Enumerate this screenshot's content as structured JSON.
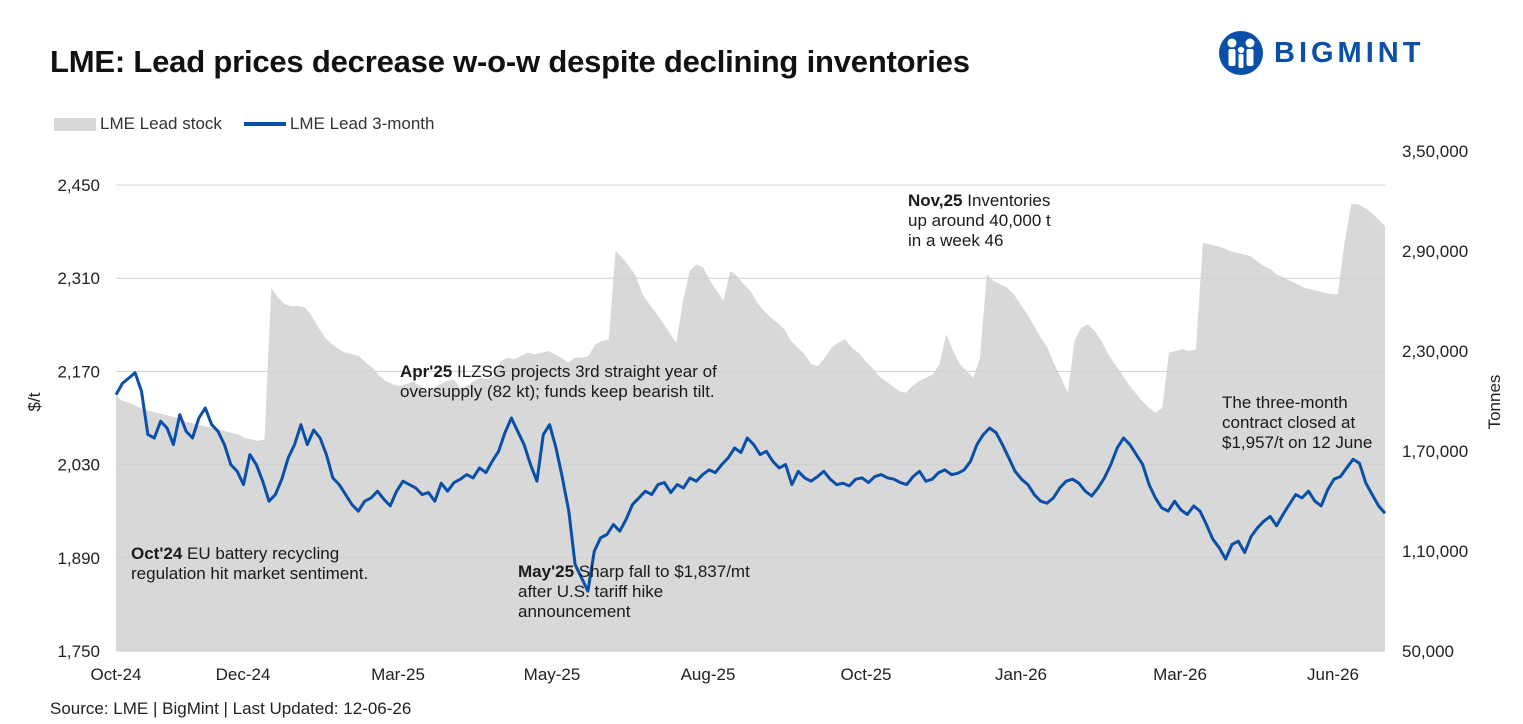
{
  "title": "LME: Lead prices decrease w-o-w despite declining inventories",
  "brand": {
    "name": "BIGMINT",
    "color": "#0a4fa8"
  },
  "source": "Source: LME | BigMint | Last Updated: 12-06-26",
  "legend": {
    "stock": "LME Lead stock",
    "price": "LME Lead 3-month"
  },
  "colors": {
    "price": "#0a4fa8",
    "stock": "#d8d8d8",
    "grid": "#d0d0d0"
  },
  "annotations": {
    "oct24": {
      "bold": "Oct'24",
      "rest": "EU battery recycling regulation hit market sentiment."
    },
    "apr25": {
      "bold": "Apr'25",
      "rest": "ILZSG projects 3rd straight year of oversupply (82 kt); funds keep bearish tilt."
    },
    "may25": {
      "bold": "May'25",
      "rest": "Sharp fall to $1,837/mt after U.S. tariff hike announcement"
    },
    "nov25": {
      "bold": "Nov,25",
      "rest": "Inventories up around 40,000 t in a week 46"
    },
    "jun26": {
      "bold": "",
      "rest": "The three-month contract closed at $1,957/t on 12 June"
    }
  },
  "chart_data": {
    "type": "line",
    "title": "LME: Lead prices decrease w-o-w despite declining inventories",
    "xlabel": "",
    "ylabel": "$/t",
    "y2label": "Tonnes",
    "x_ticks": [
      "Oct-24",
      "Dec-24",
      "Mar-25",
      "May-25",
      "Aug-25",
      "Oct-25",
      "Jan-26",
      "Mar-26",
      "Jun-26"
    ],
    "y_ticks": [
      "1,750",
      "1,890",
      "2,030",
      "2,170",
      "2,310",
      "2,450"
    ],
    "y2_ticks": [
      "50,000",
      "1,10,000",
      "1,70,000",
      "2,30,000",
      "2,90,000",
      "3,50,000"
    ],
    "ylim": [
      1750,
      2450
    ],
    "y2lim": [
      50000,
      350000
    ],
    "grid": "horizontal",
    "legend_position": "top-left",
    "series": [
      {
        "name": "LME Lead 3-month",
        "axis": "left",
        "kind": "line",
        "values": [
          2135,
          2152,
          2160,
          2168,
          2140,
          2075,
          2070,
          2095,
          2085,
          2060,
          2105,
          2080,
          2070,
          2100,
          2115,
          2090,
          2080,
          2060,
          2030,
          2020,
          2000,
          2045,
          2030,
          2005,
          1975,
          1985,
          2008,
          2040,
          2060,
          2090,
          2060,
          2082,
          2070,
          2045,
          2010,
          2000,
          1985,
          1970,
          1960,
          1975,
          1980,
          1990,
          1978,
          1968,
          1990,
          2005,
          2000,
          1995,
          1985,
          1988,
          1975,
          2002,
          1990,
          2003,
          2008,
          2015,
          2010,
          2025,
          2018,
          2035,
          2050,
          2078,
          2100,
          2080,
          2060,
          2030,
          2005,
          2075,
          2090,
          2055,
          2010,
          1960,
          1880,
          1860,
          1840,
          1900,
          1920,
          1925,
          1940,
          1930,
          1948,
          1970,
          1980,
          1990,
          1985,
          2000,
          2003,
          1988,
          2000,
          1995,
          2010,
          2005,
          2015,
          2022,
          2018,
          2030,
          2040,
          2055,
          2048,
          2070,
          2060,
          2045,
          2050,
          2035,
          2025,
          2030,
          2000,
          2020,
          2010,
          2005,
          2012,
          2020,
          2008,
          2000,
          2002,
          1998,
          2008,
          2010,
          2003,
          2012,
          2015,
          2010,
          2008,
          2003,
          2000,
          2012,
          2020,
          2005,
          2008,
          2018,
          2022,
          2015,
          2017,
          2022,
          2035,
          2060,
          2075,
          2085,
          2078,
          2060,
          2040,
          2020,
          2008,
          2000,
          1985,
          1975,
          1972,
          1980,
          1995,
          2005,
          2008,
          2002,
          1990,
          1983,
          1995,
          2010,
          2030,
          2055,
          2070,
          2060,
          2045,
          2030,
          2000,
          1980,
          1965,
          1960,
          1975,
          1962,
          1955,
          1968,
          1960,
          1940,
          1918,
          1905,
          1888,
          1910,
          1915,
          1898,
          1922,
          1935,
          1945,
          1952,
          1938,
          1955,
          1970,
          1985,
          1980,
          1990,
          1975,
          1968,
          1992,
          2008,
          2012,
          2025,
          2038,
          2032,
          2002,
          1985,
          1968,
          1957
        ]
      },
      {
        "name": "LME Lead stock",
        "axis": "right",
        "kind": "area",
        "values": [
          203000,
          200000,
          199000,
          197000,
          195000,
          194000,
          193000,
          192000,
          191000,
          190000,
          188000,
          187000,
          186000,
          185000,
          184000,
          183000,
          182000,
          181000,
          180000,
          178000,
          177000,
          176000,
          177000,
          268000,
          262000,
          258000,
          257000,
          257000,
          256000,
          251000,
          244000,
          238000,
          234000,
          231000,
          229000,
          228000,
          227000,
          223000,
          220000,
          215000,
          212000,
          210000,
          209000,
          210000,
          212000,
          209000,
          205000,
          208000,
          210000,
          212000,
          213000,
          208000,
          209000,
          212000,
          214000,
          213000,
          215000,
          224000,
          226000,
          225000,
          227000,
          229000,
          228000,
          229000,
          230000,
          228000,
          226000,
          223000,
          226000,
          226000,
          227000,
          234000,
          236000,
          237000,
          290000,
          286000,
          281000,
          275000,
          264000,
          258000,
          253000,
          247000,
          241000,
          235000,
          260000,
          278000,
          282000,
          280000,
          272000,
          266000,
          260000,
          278000,
          275000,
          270000,
          266000,
          259000,
          254000,
          250000,
          247000,
          243000,
          236000,
          232000,
          228000,
          222000,
          221000,
          226000,
          232000,
          235000,
          237000,
          232000,
          229000,
          224000,
          220000,
          215000,
          212000,
          209000,
          206000,
          205000,
          209000,
          212000,
          214000,
          216000,
          222000,
          240000,
          230000,
          222000,
          218000,
          214000,
          226000,
          276000,
          272000,
          270000,
          268000,
          264000,
          258000,
          252000,
          245000,
          238000,
          232000,
          222000,
          214000,
          205000,
          236000,
          244000,
          246000,
          242000,
          236000,
          228000,
          222000,
          216000,
          210000,
          205000,
          200000,
          196000,
          193000,
          196000,
          229000,
          230000,
          231000,
          230000,
          231000,
          295000,
          294000,
          293000,
          292000,
          290000,
          289000,
          288000,
          287000,
          284000,
          281000,
          279000,
          276000,
          274000,
          272000,
          270000,
          268000,
          267000,
          266000,
          265000,
          264000,
          264000,
          295000,
          318000,
          318000,
          316000,
          313000,
          309000,
          305000
        ]
      }
    ],
    "annotations": [
      "Oct'24 EU battery recycling regulation hit market sentiment.",
      "Apr'25 ILZSG projects 3rd straight year of oversupply (82 kt); funds keep bearish tilt.",
      "May'25 Sharp fall to $1,837/mt after U.S. tariff hike announcement",
      "Nov,25 Inventories up around 40,000 t in a week 46",
      "The three-month contract closed at $1,957/t on 12 June"
    ]
  }
}
